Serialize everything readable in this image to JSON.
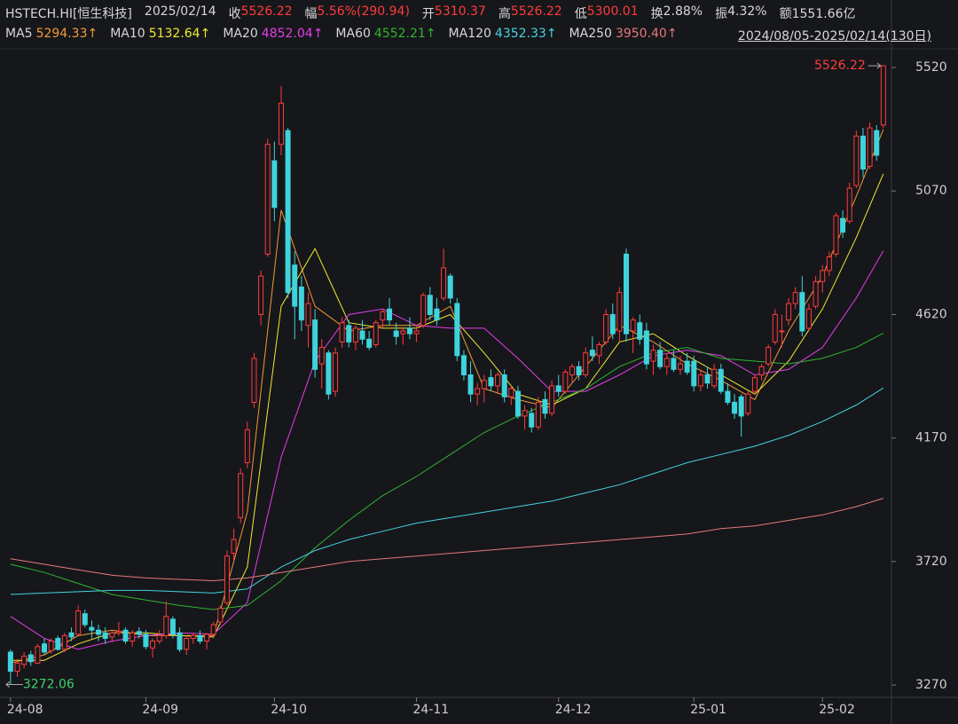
{
  "header": {
    "symbol": "HSTECH.HI[恒生科技]",
    "date": "2025/02/14",
    "close_label": "收",
    "change_label": "幅",
    "change": "5.56%(290.94)",
    "open_label": "开",
    "high_label": "高",
    "low_label": "低",
    "turnover_label": "换",
    "turnover": "2.88%",
    "amplitude_label": "振",
    "amplitude": "4.32%",
    "amount_label": "额",
    "amount": "1551.66亿"
  },
  "chart_data": {
    "type": "candlestick",
    "date_range": "2024/08/05-2025/02/14(130日)",
    "up_color": "#ff3b3b",
    "down_color": "#3fd3dc",
    "xlim": [
      -0.9,
      130.2
    ],
    "xticks": [
      {
        "value": 0,
        "label": "24-08"
      },
      {
        "value": 20,
        "label": "24-09"
      },
      {
        "value": 39,
        "label": "24-10"
      },
      {
        "value": 60,
        "label": "24-11"
      },
      {
        "value": 81,
        "label": "24-12"
      },
      {
        "value": 101,
        "label": "25-01"
      },
      {
        "value": 120,
        "label": "25-02"
      }
    ],
    "ylim": [
      3225,
      5588
    ],
    "yticks": [
      3270,
      3720,
      4170,
      4620,
      5070,
      5520
    ],
    "grid": false,
    "candles": [
      [
        3390,
        3400,
        3272.06,
        3320
      ],
      [
        3320,
        3365,
        3300,
        3350
      ],
      [
        3345,
        3390,
        3330,
        3375
      ],
      [
        3380,
        3395,
        3340,
        3355
      ],
      [
        3350,
        3420,
        3345,
        3410
      ],
      [
        3420,
        3440,
        3380,
        3390
      ],
      [
        3395,
        3440,
        3385,
        3430
      ],
      [
        3440,
        3450,
        3395,
        3400
      ],
      [
        3400,
        3460,
        3390,
        3450
      ],
      [
        3460,
        3480,
        3430,
        3445
      ],
      [
        3455,
        3560,
        3450,
        3540
      ],
      [
        3530,
        3545,
        3480,
        3490
      ],
      [
        3480,
        3505,
        3440,
        3470
      ],
      [
        3470,
        3490,
        3430,
        3455
      ],
      [
        3460,
        3480,
        3420,
        3440
      ],
      [
        3445,
        3470,
        3425,
        3460
      ],
      [
        3460,
        3500,
        3450,
        3465
      ],
      [
        3470,
        3480,
        3420,
        3430
      ],
      [
        3430,
        3470,
        3410,
        3460
      ],
      [
        3465,
        3480,
        3440,
        3455
      ],
      [
        3455,
        3470,
        3400,
        3410
      ],
      [
        3405,
        3440,
        3370,
        3430
      ],
      [
        3430,
        3470,
        3420,
        3450
      ],
      [
        3450,
        3575,
        3440,
        3520
      ],
      [
        3510,
        3520,
        3440,
        3455
      ],
      [
        3460,
        3480,
        3390,
        3400
      ],
      [
        3400,
        3450,
        3380,
        3440
      ],
      [
        3440,
        3460,
        3420,
        3450
      ],
      [
        3450,
        3470,
        3420,
        3430
      ],
      [
        3430,
        3460,
        3400,
        3455
      ],
      [
        3455,
        3500,
        3440,
        3490
      ],
      [
        3500,
        3560,
        3490,
        3550
      ],
      [
        3570,
        3760,
        3560,
        3740
      ],
      [
        3750,
        3840,
        3720,
        3800
      ],
      [
        3880,
        4060,
        3860,
        4040
      ],
      [
        4080,
        4230,
        4060,
        4200
      ],
      [
        4300,
        4480,
        4280,
        4460
      ],
      [
        4620,
        4780,
        4580,
        4760
      ],
      [
        4840,
        5260,
        4830,
        5240
      ],
      [
        5180,
        5250,
        4960,
        5010
      ],
      [
        5240,
        5452,
        5200,
        5390
      ],
      [
        5290,
        5300,
        4680,
        4700
      ],
      [
        4800,
        4850,
        4530,
        4650
      ],
      [
        4720,
        4760,
        4560,
        4600
      ],
      [
        4580,
        4700,
        4500,
        4660
      ],
      [
        4600,
        4640,
        4390,
        4420
      ],
      [
        4440,
        4530,
        4350,
        4500
      ],
      [
        4480,
        4490,
        4310,
        4330
      ],
      [
        4340,
        4500,
        4320,
        4480
      ],
      [
        4520,
        4610,
        4500,
        4590
      ],
      [
        4580,
        4600,
        4500,
        4520
      ],
      [
        4520,
        4580,
        4490,
        4570
      ],
      [
        4560,
        4600,
        4510,
        4530
      ],
      [
        4530,
        4560,
        4490,
        4500
      ],
      [
        4510,
        4600,
        4500,
        4590
      ],
      [
        4600,
        4640,
        4570,
        4630
      ],
      [
        4640,
        4680,
        4580,
        4600
      ],
      [
        4560,
        4590,
        4510,
        4540
      ],
      [
        4550,
        4570,
        4510,
        4560
      ],
      [
        4570,
        4610,
        4530,
        4550
      ],
      [
        4550,
        4580,
        4520,
        4560
      ],
      [
        4580,
        4700,
        4570,
        4690
      ],
      [
        4690,
        4720,
        4600,
        4620
      ],
      [
        4640,
        4680,
        4580,
        4600
      ],
      [
        4680,
        4860,
        4670,
        4790
      ],
      [
        4760,
        4770,
        4660,
        4680
      ],
      [
        4660,
        4680,
        4450,
        4470
      ],
      [
        4470,
        4490,
        4380,
        4400
      ],
      [
        4400,
        4450,
        4300,
        4330
      ],
      [
        4330,
        4370,
        4290,
        4350
      ],
      [
        4350,
        4400,
        4300,
        4380
      ],
      [
        4390,
        4420,
        4340,
        4360
      ],
      [
        4360,
        4410,
        4330,
        4400
      ],
      [
        4400,
        4420,
        4300,
        4320
      ],
      [
        4320,
        4360,
        4290,
        4350
      ],
      [
        4340,
        4360,
        4240,
        4250
      ],
      [
        4250,
        4290,
        4200,
        4270
      ],
      [
        4260,
        4280,
        4190,
        4210
      ],
      [
        4210,
        4320,
        4200,
        4300
      ],
      [
        4310,
        4340,
        4240,
        4260
      ],
      [
        4260,
        4380,
        4250,
        4360
      ],
      [
        4360,
        4400,
        4320,
        4340
      ],
      [
        4340,
        4420,
        4330,
        4410
      ],
      [
        4400,
        4440,
        4370,
        4430
      ],
      [
        4430,
        4450,
        4380,
        4400
      ],
      [
        4400,
        4500,
        4390,
        4480
      ],
      [
        4490,
        4540,
        4450,
        4470
      ],
      [
        4470,
        4520,
        4440,
        4510
      ],
      [
        4520,
        4640,
        4510,
        4620
      ],
      [
        4620,
        4660,
        4530,
        4550
      ],
      [
        4560,
        4720,
        4520,
        4700
      ],
      [
        4840,
        4860,
        4520,
        4550
      ],
      [
        4560,
        4610,
        4480,
        4600
      ],
      [
        4590,
        4620,
        4510,
        4530
      ],
      [
        4560,
        4590,
        4420,
        4440
      ],
      [
        4450,
        4510,
        4400,
        4490
      ],
      [
        4490,
        4520,
        4420,
        4430
      ],
      [
        4430,
        4480,
        4400,
        4460
      ],
      [
        4460,
        4490,
        4410,
        4420
      ],
      [
        4420,
        4470,
        4400,
        4440
      ],
      [
        4450,
        4480,
        4400,
        4410
      ],
      [
        4450,
        4470,
        4340,
        4360
      ],
      [
        4360,
        4420,
        4340,
        4400
      ],
      [
        4400,
        4430,
        4350,
        4370
      ],
      [
        4360,
        4440,
        4350,
        4420
      ],
      [
        4420,
        4440,
        4330,
        4340
      ],
      [
        4340,
        4370,
        4290,
        4300
      ],
      [
        4300,
        4330,
        4240,
        4260
      ],
      [
        4320,
        4330,
        4175,
        4250
      ],
      [
        4260,
        4340,
        4250,
        4330
      ],
      [
        4340,
        4400,
        4330,
        4390
      ],
      [
        4400,
        4440,
        4380,
        4430
      ],
      [
        4440,
        4510,
        4430,
        4500
      ],
      [
        4520,
        4640,
        4510,
        4620
      ],
      [
        4560,
        4620,
        4500,
        4560
      ],
      [
        4600,
        4680,
        4580,
        4660
      ],
      [
        4660,
        4720,
        4640,
        4700
      ],
      [
        4700,
        4760,
        4540,
        4560
      ],
      [
        4570,
        4660,
        4560,
        4640
      ],
      [
        4650,
        4760,
        4640,
        4740
      ],
      [
        4740,
        4800,
        4700,
        4780
      ],
      [
        4780,
        4850,
        4760,
        4830
      ],
      [
        4840,
        4990,
        4830,
        4980
      ],
      [
        4970,
        5000,
        4900,
        4920
      ],
      [
        4960,
        5100,
        4950,
        5080
      ],
      [
        5090,
        5290,
        5080,
        5270
      ],
      [
        5270,
        5300,
        5120,
        5150
      ],
      [
        5160,
        5320,
        5150,
        5300
      ],
      [
        5290,
        5310,
        5180,
        5200
      ],
      [
        5310.37,
        5526.22,
        5300.01,
        5526.22
      ]
    ],
    "series": [
      {
        "name": "MA5",
        "color": "#f39a34",
        "last_label": "5294.33↑",
        "x": [
          0,
          5,
          10,
          15,
          20,
          25,
          30,
          35,
          40,
          45,
          50,
          55,
          60,
          65,
          70,
          75,
          80,
          85,
          90,
          95,
          100,
          105,
          110,
          115,
          120,
          125,
          129
        ],
        "values": [
          3350,
          3380,
          3450,
          3470,
          3450,
          3450,
          3450,
          3900,
          5000,
          4650,
          4560,
          4580,
          4580,
          4650,
          4350,
          4310,
          4280,
          4430,
          4580,
          4520,
          4440,
          4380,
          4310,
          4560,
          4760,
          5050,
          5294.33
        ]
      },
      {
        "name": "MA10",
        "color": "#f0ea2e",
        "last_label": "5132.64↑",
        "x": [
          0,
          5,
          10,
          15,
          20,
          25,
          30,
          35,
          40,
          45,
          50,
          55,
          60,
          65,
          70,
          75,
          80,
          85,
          90,
          95,
          100,
          105,
          110,
          115,
          120,
          125,
          129
        ],
        "values": [
          3360,
          3360,
          3420,
          3460,
          3460,
          3450,
          3445,
          3700,
          4650,
          4860,
          4590,
          4570,
          4570,
          4620,
          4480,
          4330,
          4290,
          4350,
          4520,
          4550,
          4470,
          4400,
          4330,
          4450,
          4640,
          4900,
          5132.64
        ]
      },
      {
        "name": "MA20",
        "color": "#e43ee8",
        "last_label": "4852.04↑",
        "x": [
          0,
          5,
          10,
          15,
          20,
          25,
          30,
          35,
          40,
          45,
          50,
          55,
          60,
          65,
          70,
          75,
          80,
          85,
          90,
          95,
          100,
          105,
          110,
          115,
          120,
          125,
          129
        ],
        "values": [
          3520,
          3440,
          3400,
          3430,
          3450,
          3460,
          3455,
          3570,
          4100,
          4450,
          4620,
          4640,
          4580,
          4570,
          4570,
          4460,
          4340,
          4340,
          4400,
          4470,
          4490,
          4470,
          4400,
          4420,
          4500,
          4680,
          4852.04
        ]
      },
      {
        "name": "MA60",
        "color": "#2fb52f",
        "last_label": "4552.21↑",
        "x": [
          0,
          5,
          10,
          15,
          20,
          25,
          30,
          35,
          40,
          45,
          50,
          55,
          60,
          65,
          70,
          75,
          80,
          85,
          90,
          95,
          100,
          105,
          110,
          115,
          120,
          125,
          129
        ],
        "values": [
          3710,
          3680,
          3640,
          3600,
          3580,
          3560,
          3545,
          3560,
          3650,
          3770,
          3870,
          3960,
          4030,
          4110,
          4190,
          4250,
          4300,
          4350,
          4430,
          4480,
          4500,
          4460,
          4450,
          4440,
          4460,
          4500,
          4552.21
        ]
      },
      {
        "name": "MA120",
        "color": "#45d2e0",
        "last_label": "4352.33↑",
        "x": [
          0,
          5,
          10,
          15,
          20,
          25,
          30,
          35,
          40,
          45,
          50,
          55,
          60,
          65,
          70,
          75,
          80,
          85,
          90,
          95,
          100,
          105,
          110,
          115,
          120,
          125,
          129
        ],
        "values": [
          3600,
          3605,
          3610,
          3615,
          3615,
          3610,
          3605,
          3620,
          3700,
          3760,
          3800,
          3830,
          3860,
          3880,
          3900,
          3920,
          3940,
          3970,
          4000,
          4040,
          4080,
          4110,
          4140,
          4180,
          4230,
          4290,
          4352.33
        ]
      },
      {
        "name": "MA250",
        "color": "#e57a7a",
        "last_label": "3950.40↑",
        "x": [
          0,
          5,
          10,
          15,
          20,
          25,
          30,
          35,
          40,
          45,
          50,
          55,
          60,
          65,
          70,
          75,
          80,
          85,
          90,
          95,
          100,
          105,
          110,
          115,
          120,
          125,
          129
        ],
        "values": [
          3730,
          3710,
          3690,
          3670,
          3660,
          3655,
          3650,
          3660,
          3680,
          3700,
          3720,
          3730,
          3740,
          3750,
          3760,
          3770,
          3780,
          3790,
          3800,
          3810,
          3820,
          3840,
          3850,
          3870,
          3890,
          3920,
          3950.4
        ]
      }
    ]
  }
}
